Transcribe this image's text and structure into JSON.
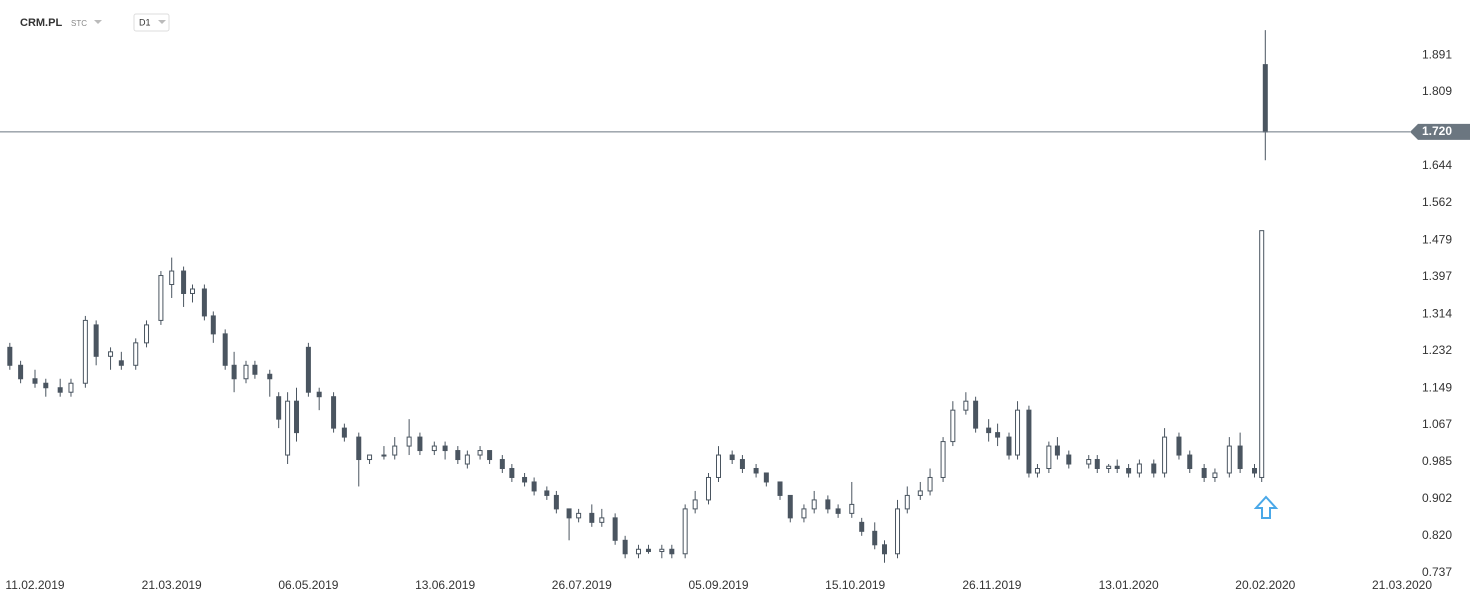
{
  "header": {
    "symbol": "CRM.PL",
    "market": "STC",
    "interval": "D1"
  },
  "chart_data": {
    "type": "candlestick",
    "x": [
      "04.02.2019",
      "07.02.2019",
      "11.02.2019",
      "14.02.2019",
      "18.02.2019",
      "21.02.2019",
      "25.02.2019",
      "28.02.2019",
      "04.03.2019",
      "07.03.2019",
      "11.03.2019",
      "14.03.2019",
      "18.03.2019",
      "21.03.2019",
      "25.03.2019",
      "28.03.2019",
      "01.04.2019",
      "04.04.2019",
      "08.04.2019",
      "11.04.2019",
      "15.04.2019",
      "18.04.2019",
      "23.04.2019",
      "26.04.2019",
      "29.04.2019",
      "02.05.2019",
      "06.05.2019",
      "09.05.2019",
      "13.05.2019",
      "16.05.2019",
      "20.05.2019",
      "23.05.2019",
      "27.05.2019",
      "30.05.2019",
      "03.06.2019",
      "06.06.2019",
      "10.06.2019",
      "13.06.2019",
      "17.06.2019",
      "20.06.2019",
      "24.06.2019",
      "27.06.2019",
      "01.07.2019",
      "04.07.2019",
      "08.07.2019",
      "11.07.2019",
      "15.07.2019",
      "18.07.2019",
      "22.07.2019",
      "25.07.2019",
      "29.07.2019",
      "01.08.2019",
      "05.08.2019",
      "08.08.2019",
      "12.08.2019",
      "15.08.2019",
      "19.08.2019",
      "22.08.2019",
      "26.08.2019",
      "29.08.2019",
      "02.09.2019",
      "05.09.2019",
      "09.09.2019",
      "12.09.2019",
      "16.09.2019",
      "19.09.2019",
      "23.09.2019",
      "26.09.2019",
      "30.09.2019",
      "03.10.2019",
      "07.10.2019",
      "10.10.2019",
      "14.10.2019",
      "17.10.2019",
      "21.10.2019",
      "24.10.2019",
      "28.10.2019",
      "31.10.2019",
      "04.11.2019",
      "07.11.2019",
      "11.11.2019",
      "14.11.2019",
      "18.11.2019",
      "21.11.2019",
      "25.11.2019",
      "28.11.2019",
      "02.12.2019",
      "05.12.2019",
      "09.12.2019",
      "12.12.2019",
      "16.12.2019",
      "19.12.2019",
      "23.12.2019",
      "30.12.2019",
      "02.01.2020",
      "06.01.2020",
      "09.01.2020",
      "13.01.2020",
      "16.01.2020",
      "20.01.2020",
      "23.01.2020",
      "27.01.2020",
      "30.01.2020",
      "03.02.2020",
      "06.02.2020",
      "10.02.2020",
      "13.02.2020",
      "17.02.2020",
      "19.02.2020",
      "20.02.2020"
    ],
    "open": [
      1.24,
      1.2,
      1.17,
      1.16,
      1.15,
      1.14,
      1.16,
      1.29,
      1.22,
      1.21,
      1.2,
      1.25,
      1.3,
      1.38,
      1.41,
      1.36,
      1.37,
      1.31,
      1.27,
      1.2,
      1.17,
      1.2,
      1.18,
      1.13,
      1.0,
      1.12,
      1.24,
      1.14,
      1.13,
      1.06,
      1.04,
      0.99,
      1.0,
      1.0,
      1.02,
      1.04,
      1.01,
      1.02,
      1.01,
      0.98,
      1.0,
      1.01,
      0.99,
      0.97,
      0.95,
      0.94,
      0.92,
      0.91,
      0.88,
      0.86,
      0.87,
      0.85,
      0.86,
      0.81,
      0.78,
      0.79,
      0.785,
      0.79,
      0.78,
      0.88,
      0.9,
      0.95,
      1.0,
      0.99,
      0.97,
      0.96,
      0.94,
      0.91,
      0.86,
      0.88,
      0.9,
      0.88,
      0.87,
      0.85,
      0.83,
      0.8,
      0.78,
      0.88,
      0.91,
      0.92,
      0.95,
      1.03,
      1.1,
      1.12,
      1.06,
      1.05,
      1.04,
      1.0,
      1.1,
      0.96,
      0.97,
      1.02,
      1.0,
      0.98,
      0.99,
      0.97,
      0.975,
      0.97,
      0.96,
      0.98,
      0.96,
      1.04,
      1.0,
      0.97,
      0.95,
      0.96,
      1.02,
      0.97,
      0.95,
      1.87
    ],
    "high": [
      1.25,
      1.21,
      1.19,
      1.17,
      1.17,
      1.17,
      1.31,
      1.3,
      1.24,
      1.23,
      1.26,
      1.3,
      1.41,
      1.44,
      1.42,
      1.38,
      1.38,
      1.32,
      1.28,
      1.23,
      1.21,
      1.21,
      1.19,
      1.14,
      1.14,
      1.15,
      1.25,
      1.15,
      1.14,
      1.07,
      1.05,
      1.0,
      1.02,
      1.04,
      1.08,
      1.05,
      1.03,
      1.03,
      1.02,
      1.01,
      1.02,
      1.01,
      1.0,
      0.98,
      0.96,
      0.95,
      0.93,
      0.92,
      0.88,
      0.88,
      0.89,
      0.88,
      0.87,
      0.82,
      0.8,
      0.8,
      0.8,
      0.8,
      0.89,
      0.92,
      0.96,
      1.02,
      1.01,
      1.0,
      0.98,
      0.96,
      0.94,
      0.91,
      0.89,
      0.92,
      0.91,
      0.89,
      0.94,
      0.86,
      0.85,
      0.81,
      0.9,
      0.93,
      0.94,
      0.97,
      1.04,
      1.12,
      1.14,
      1.13,
      1.08,
      1.07,
      1.05,
      1.12,
      1.11,
      0.98,
      1.03,
      1.04,
      1.01,
      1.0,
      1.0,
      0.98,
      0.99,
      0.98,
      0.99,
      0.99,
      1.06,
      1.05,
      1.01,
      0.98,
      0.97,
      1.04,
      1.05,
      0.98,
      1.5,
      1.947
    ],
    "low": [
      1.19,
      1.16,
      1.15,
      1.13,
      1.13,
      1.13,
      1.15,
      1.2,
      1.19,
      1.19,
      1.19,
      1.24,
      1.29,
      1.35,
      1.33,
      1.34,
      1.3,
      1.25,
      1.19,
      1.14,
      1.16,
      1.17,
      1.13,
      1.06,
      0.98,
      1.03,
      1.13,
      1.1,
      1.05,
      1.03,
      0.93,
      0.98,
      0.99,
      0.99,
      1.0,
      1.0,
      1.0,
      0.99,
      0.98,
      0.97,
      0.99,
      0.98,
      0.96,
      0.94,
      0.93,
      0.91,
      0.9,
      0.87,
      0.81,
      0.85,
      0.84,
      0.84,
      0.8,
      0.77,
      0.77,
      0.78,
      0.77,
      0.77,
      0.77,
      0.87,
      0.89,
      0.94,
      0.98,
      0.96,
      0.95,
      0.93,
      0.9,
      0.85,
      0.85,
      0.87,
      0.87,
      0.86,
      0.86,
      0.82,
      0.79,
      0.76,
      0.77,
      0.87,
      0.9,
      0.91,
      0.94,
      1.02,
      1.09,
      1.05,
      1.03,
      1.02,
      0.99,
      0.99,
      0.95,
      0.95,
      0.96,
      0.99,
      0.97,
      0.97,
      0.96,
      0.96,
      0.96,
      0.95,
      0.95,
      0.95,
      0.95,
      0.99,
      0.96,
      0.94,
      0.94,
      0.95,
      0.96,
      0.95,
      0.94,
      1.657
    ],
    "close": [
      1.2,
      1.17,
      1.16,
      1.15,
      1.14,
      1.16,
      1.3,
      1.22,
      1.23,
      1.2,
      1.25,
      1.29,
      1.4,
      1.41,
      1.36,
      1.37,
      1.31,
      1.27,
      1.2,
      1.17,
      1.2,
      1.18,
      1.17,
      1.08,
      1.12,
      1.05,
      1.14,
      1.13,
      1.06,
      1.04,
      0.99,
      1.0,
      1.0,
      1.02,
      1.04,
      1.01,
      1.02,
      1.01,
      0.99,
      1.0,
      1.01,
      0.99,
      0.97,
      0.95,
      0.94,
      0.92,
      0.91,
      0.88,
      0.86,
      0.87,
      0.85,
      0.86,
      0.81,
      0.78,
      0.79,
      0.785,
      0.79,
      0.78,
      0.88,
      0.9,
      0.95,
      1.0,
      0.99,
      0.97,
      0.96,
      0.94,
      0.91,
      0.86,
      0.88,
      0.9,
      0.88,
      0.87,
      0.89,
      0.83,
      0.8,
      0.78,
      0.88,
      0.91,
      0.92,
      0.95,
      1.03,
      1.1,
      1.12,
      1.06,
      1.05,
      1.04,
      1.0,
      1.1,
      0.96,
      0.97,
      1.02,
      1.0,
      0.98,
      0.99,
      0.97,
      0.975,
      0.97,
      0.96,
      0.98,
      0.96,
      1.04,
      1.0,
      0.97,
      0.95,
      0.96,
      1.02,
      0.97,
      0.96,
      1.5,
      1.72
    ],
    "up_color": "#ffffff",
    "down_color": "#4a5560",
    "edge_color": "#4a5560",
    "current_price": {
      "value": 1.72,
      "label": "1.720"
    },
    "ylim": [
      0.726,
      2.014
    ],
    "yticks": [
      0.737,
      {
        "value": 0.82,
        "label": "0.820"
      },
      0.902,
      0.985,
      1.067,
      1.149,
      1.232,
      1.314,
      1.397,
      1.479,
      1.562,
      1.644,
      1.809,
      1.891
    ],
    "xticks": [
      "11.02.2019",
      "21.03.2019",
      "06.05.2019",
      "13.06.2019",
      "26.07.2019",
      "05.09.2019",
      "15.10.2019",
      "26.11.2019",
      "13.01.2020",
      "20.02.2020",
      "21.03.2020"
    ]
  }
}
